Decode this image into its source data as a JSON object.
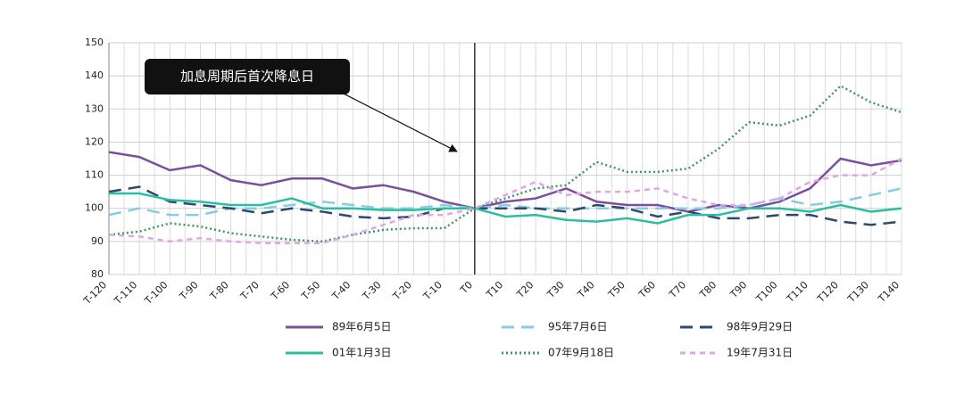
{
  "chart_data": {
    "type": "line",
    "annotation": "加息周期后首次降息日",
    "categories": [
      "T-120",
      "T-110",
      "T-100",
      "T-90",
      "T-80",
      "T-70",
      "T-60",
      "T-50",
      "T-40",
      "T-30",
      "T-20",
      "T-10",
      "T0",
      "T10",
      "T20",
      "T30",
      "T40",
      "T50",
      "T60",
      "T70",
      "T80",
      "T90",
      "T100",
      "T110",
      "T120",
      "T130",
      "T140"
    ],
    "ylim": [
      80,
      150
    ],
    "yticks": [
      80,
      90,
      100,
      110,
      120,
      130,
      140,
      150
    ],
    "grid": true,
    "series": [
      {
        "name": "89年6月5日",
        "color": "#7b4f9e",
        "dash": "solid",
        "values": [
          117,
          115.5,
          111.5,
          113,
          108.5,
          107,
          109,
          109,
          106,
          107,
          105,
          102,
          100,
          102,
          103,
          106,
          102,
          101,
          101,
          99,
          101,
          100,
          102,
          106,
          115,
          113,
          114.5
        ]
      },
      {
        "name": "95年7月6日",
        "color": "#86cbe8",
        "dash": "long",
        "values": [
          98,
          100,
          98,
          98,
          100,
          100,
          101,
          102,
          101,
          100,
          100,
          101,
          100,
          101,
          100,
          100,
          100,
          100,
          100,
          100,
          100,
          101,
          103,
          101,
          102,
          104,
          106
        ]
      },
      {
        "name": "98年9月29日",
        "color": "#2c4a6e",
        "dash": "long",
        "values": [
          105,
          106.5,
          102,
          101,
          100,
          98.5,
          100,
          99,
          97.5,
          97,
          97.5,
          100,
          100,
          100,
          100,
          99,
          101,
          100,
          97.5,
          99,
          97,
          97,
          98,
          98,
          96,
          95,
          96
        ]
      },
      {
        "name": "01年1月3日",
        "color": "#2bbf9f",
        "dash": "solid",
        "values": [
          104.5,
          104.5,
          102.5,
          102,
          101,
          101,
          103,
          100,
          100,
          99.5,
          99.5,
          100,
          100,
          97.5,
          98,
          96.5,
          96,
          97,
          95.5,
          98,
          98,
          100,
          100,
          99,
          101,
          99,
          100
        ]
      },
      {
        "name": "07年9月18日",
        "color": "#3a9a5c",
        "dash": "dot",
        "values": [
          92,
          93,
          95.5,
          94.5,
          92.5,
          91.5,
          90.5,
          90,
          92,
          93.5,
          94,
          94,
          100,
          103,
          106,
          107,
          114,
          111,
          111,
          112,
          118,
          126,
          125,
          128,
          137,
          132,
          129
        ]
      },
      {
        "name": "19年7月31日",
        "color": "#e0a6e6",
        "dash": "short",
        "values": [
          92,
          91.5,
          90,
          91,
          90,
          89.5,
          89.5,
          89.5,
          92,
          95,
          98,
          98,
          100,
          104,
          108,
          104,
          105,
          105,
          106,
          103,
          101,
          101,
          103,
          108,
          110,
          110,
          115
        ]
      }
    ]
  }
}
